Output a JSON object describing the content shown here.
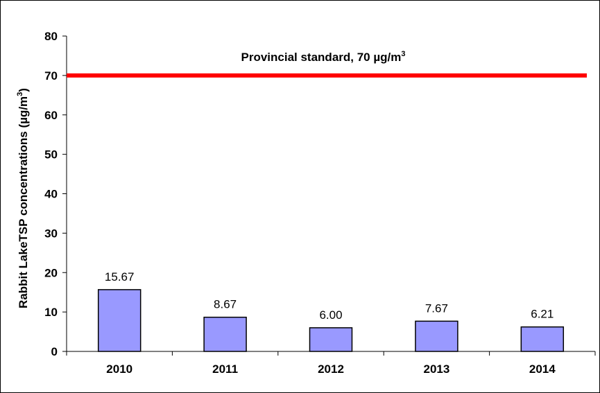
{
  "chart_data": {
    "type": "bar",
    "categories": [
      "2010",
      "2011",
      "2012",
      "2013",
      "2014"
    ],
    "values": [
      15.67,
      8.67,
      6.0,
      7.67,
      6.21
    ],
    "value_labels": [
      "15.67",
      "8.67",
      "6.00",
      "7.67",
      "6.21"
    ],
    "ylabel": "Rabbit LakeTSP concentrations (µg/m",
    "ylabel_superscript": "3",
    "ylabel_suffix": ")",
    "ylim": [
      0,
      80
    ],
    "yticks": [
      0,
      10,
      20,
      30,
      40,
      50,
      60,
      70,
      80
    ],
    "grid": false,
    "legend": "none",
    "bar_color": "#9999ff",
    "reference_line": {
      "value": 70,
      "label": "Provincial standard, 70 µg/m",
      "label_superscript": "3",
      "color": "#ff0000"
    }
  }
}
